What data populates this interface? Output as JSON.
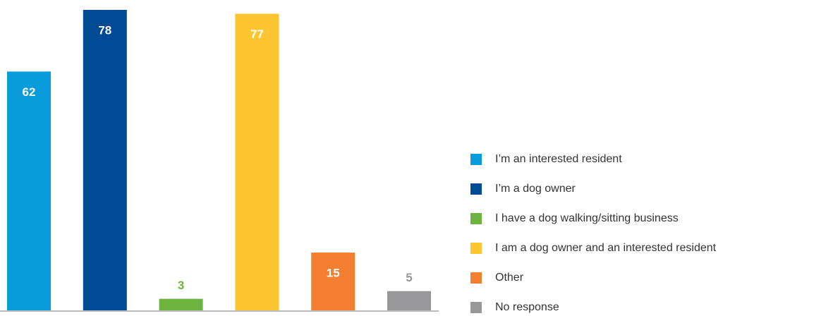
{
  "chart_data": {
    "type": "bar",
    "categories": [
      "I’m an interested resident",
      "I’m a dog owner",
      "I have a dog walking/sitting business",
      "I am a dog owner and an interested resident",
      "Other",
      "No response"
    ],
    "values": [
      62,
      78,
      3,
      77,
      15,
      5
    ],
    "colors": [
      "#0a9bdc",
      "#004b93",
      "#6db33f",
      "#fdc52f",
      "#f47f30",
      "#98989a"
    ],
    "legend": "right"
  }
}
